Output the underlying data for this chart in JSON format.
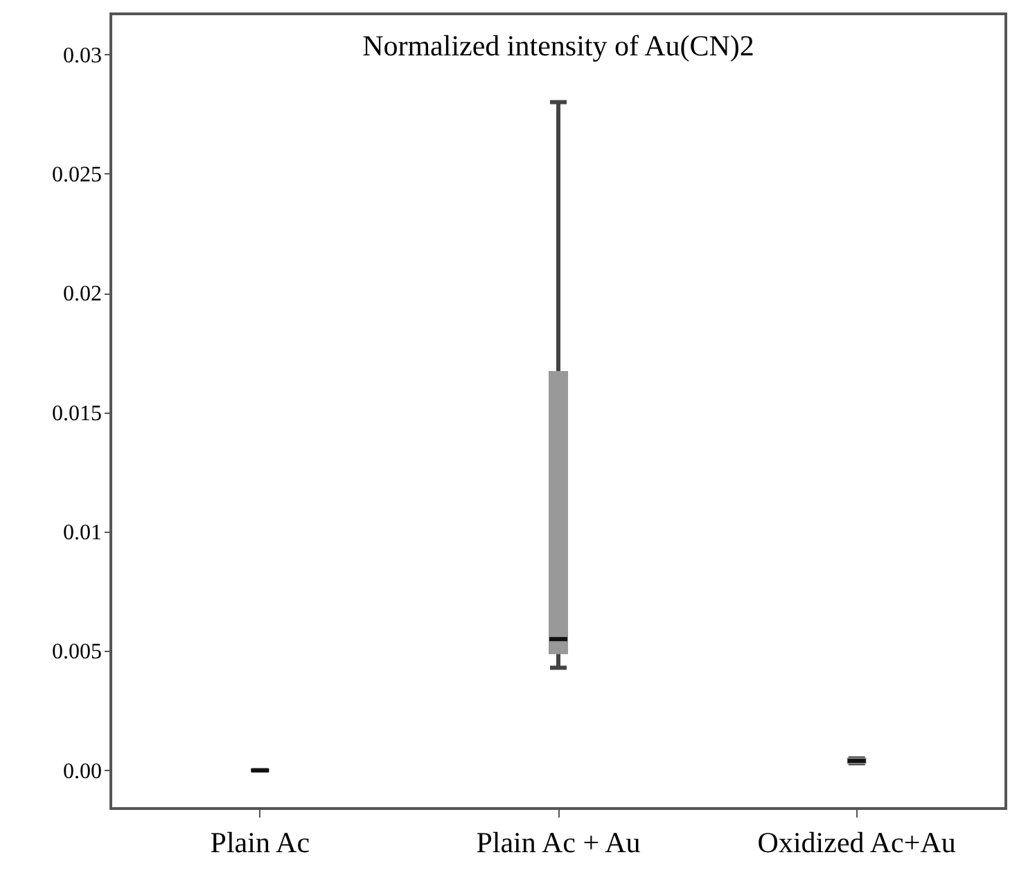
{
  "chart_data": {
    "type": "box",
    "title": "Normalized intensity of Au(CN)2",
    "categories": [
      "Plain Ac",
      "Plain Ac + Au",
      "Oxidized Ac+Au"
    ],
    "boxes": [
      {
        "low": 0,
        "q1": 0,
        "median": 0,
        "q3": 0,
        "high": 0
      },
      {
        "low": 0.0043,
        "q1": 0.0049,
        "median": 0.0055,
        "q3": 0.0167,
        "high": 0.028
      },
      {
        "low": 0.0003,
        "q1": 0.0003,
        "median": 0.0004,
        "q3": 0.0005,
        "high": 0.0005
      }
    ],
    "color": "#999999",
    "ylim": [
      -0.0016,
      0.0317
    ],
    "yticks": [
      {
        "value": 0,
        "label": "0.00"
      },
      0.005,
      0.01,
      0.015,
      0.02,
      0.025,
      {
        "value": 0.03,
        "label": "0.03"
      }
    ],
    "grid": false
  }
}
